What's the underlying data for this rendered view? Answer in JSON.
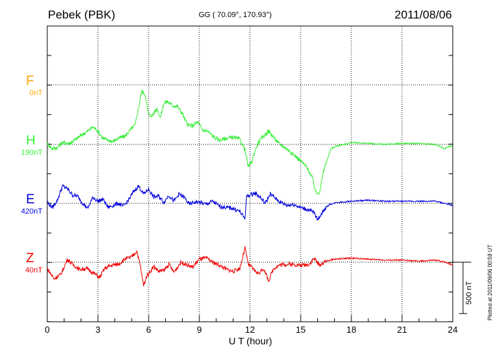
{
  "header": {
    "station": "Pebek (PBK)",
    "coords": "GG ( 70.09°, 170.93°)",
    "date": "2011/08/06"
  },
  "footer": {
    "plotted": "Plotted at 2011/09/06 00:59 UT"
  },
  "chart_data": {
    "type": "line",
    "xlabel": "U T (hour)",
    "xlim": [
      0,
      24
    ],
    "xticks": [
      0,
      3,
      6,
      9,
      12,
      15,
      18,
      21,
      24
    ],
    "grid": true,
    "scale_bar": {
      "label": "500 nT",
      "value": 500
    },
    "series": [
      {
        "name": "F",
        "baseline_label": "0nT",
        "color": "#ffa500",
        "points": []
      },
      {
        "name": "H",
        "baseline_label": "190nT",
        "color": "#33ee33",
        "points": [
          [
            0,
            10
          ],
          [
            0.3,
            -40
          ],
          [
            0.6,
            -30
          ],
          [
            0.9,
            20
          ],
          [
            1.3,
            10
          ],
          [
            1.7,
            50
          ],
          [
            2.0,
            90
          ],
          [
            2.4,
            130
          ],
          [
            2.7,
            170
          ],
          [
            3.0,
            130
          ],
          [
            3.3,
            60
          ],
          [
            3.6,
            40
          ],
          [
            3.9,
            30
          ],
          [
            4.2,
            60
          ],
          [
            4.6,
            80
          ],
          [
            4.9,
            140
          ],
          [
            5.2,
            190
          ],
          [
            5.5,
            440
          ],
          [
            5.6,
            520
          ],
          [
            5.8,
            480
          ],
          [
            6.0,
            290
          ],
          [
            6.2,
            280
          ],
          [
            6.5,
            350
          ],
          [
            6.7,
            260
          ],
          [
            6.9,
            400
          ],
          [
            7.1,
            420
          ],
          [
            7.4,
            380
          ],
          [
            7.7,
            370
          ],
          [
            8.0,
            300
          ],
          [
            8.3,
            190
          ],
          [
            8.6,
            180
          ],
          [
            8.9,
            220
          ],
          [
            9.2,
            140
          ],
          [
            9.5,
            130
          ],
          [
            9.8,
            80
          ],
          [
            10.2,
            40
          ],
          [
            10.6,
            60
          ],
          [
            11.0,
            70
          ],
          [
            11.4,
            50
          ],
          [
            11.7,
            -50
          ],
          [
            11.9,
            -220
          ],
          [
            12.1,
            -170
          ],
          [
            12.3,
            -60
          ],
          [
            12.5,
            20
          ],
          [
            12.8,
            80
          ],
          [
            13.1,
            130
          ],
          [
            13.4,
            70
          ],
          [
            13.7,
            10
          ],
          [
            14.0,
            -20
          ],
          [
            14.3,
            -60
          ],
          [
            14.6,
            -100
          ],
          [
            15.0,
            -160
          ],
          [
            15.4,
            -230
          ],
          [
            15.7,
            -330
          ],
          [
            15.9,
            -470
          ],
          [
            16.1,
            -470
          ],
          [
            16.4,
            -230
          ],
          [
            16.8,
            -40
          ],
          [
            17.2,
            -10
          ],
          [
            17.6,
            0
          ],
          [
            18.0,
            20
          ],
          [
            19.0,
            10
          ],
          [
            20.0,
            0
          ],
          [
            21.0,
            10
          ],
          [
            22.0,
            10
          ],
          [
            23.0,
            0
          ],
          [
            23.5,
            -40
          ],
          [
            23.8,
            -20
          ],
          [
            24.0,
            -10
          ]
        ]
      },
      {
        "name": "E",
        "baseline_label": "420nT",
        "color": "#0000dd",
        "points": [
          [
            0,
            10
          ],
          [
            0.3,
            -40
          ],
          [
            0.6,
            30
          ],
          [
            0.9,
            170
          ],
          [
            1.2,
            140
          ],
          [
            1.5,
            80
          ],
          [
            1.8,
            70
          ],
          [
            2.1,
            0
          ],
          [
            2.4,
            -50
          ],
          [
            2.7,
            60
          ],
          [
            3.0,
            20
          ],
          [
            3.3,
            40
          ],
          [
            3.6,
            -40
          ],
          [
            3.9,
            -20
          ],
          [
            4.2,
            0
          ],
          [
            4.5,
            -30
          ],
          [
            4.8,
            30
          ],
          [
            5.1,
            110
          ],
          [
            5.4,
            170
          ],
          [
            5.7,
            90
          ],
          [
            6.0,
            140
          ],
          [
            6.3,
            60
          ],
          [
            6.6,
            70
          ],
          [
            6.9,
            10
          ],
          [
            7.2,
            80
          ],
          [
            7.5,
            20
          ],
          [
            7.8,
            90
          ],
          [
            8.1,
            60
          ],
          [
            8.4,
            -10
          ],
          [
            8.7,
            10
          ],
          [
            9.0,
            10
          ],
          [
            9.4,
            -10
          ],
          [
            9.8,
            20
          ],
          [
            10.2,
            -30
          ],
          [
            10.6,
            -40
          ],
          [
            11.0,
            -50
          ],
          [
            11.4,
            -80
          ],
          [
            11.7,
            -150
          ],
          [
            11.8,
            70
          ],
          [
            12.0,
            80
          ],
          [
            12.3,
            100
          ],
          [
            12.6,
            60
          ],
          [
            12.9,
            0
          ],
          [
            13.2,
            90
          ],
          [
            13.5,
            50
          ],
          [
            13.8,
            10
          ],
          [
            14.2,
            -20
          ],
          [
            14.6,
            -10
          ],
          [
            15.0,
            -40
          ],
          [
            15.4,
            -60
          ],
          [
            15.8,
            -90
          ],
          [
            16.0,
            -160
          ],
          [
            16.3,
            -80
          ],
          [
            16.7,
            -10
          ],
          [
            17.2,
            10
          ],
          [
            18.0,
            20
          ],
          [
            19.0,
            30
          ],
          [
            20.0,
            20
          ],
          [
            21.0,
            20
          ],
          [
            22.0,
            20
          ],
          [
            23.0,
            20
          ],
          [
            24.0,
            -20
          ]
        ]
      },
      {
        "name": "Z",
        "baseline_label": "40nT",
        "color": "#ee0000",
        "points": [
          [
            0,
            -60
          ],
          [
            0.4,
            -160
          ],
          [
            0.8,
            -120
          ],
          [
            1.2,
            30
          ],
          [
            1.5,
            -20
          ],
          [
            1.9,
            -70
          ],
          [
            2.3,
            -60
          ],
          [
            2.7,
            -100
          ],
          [
            3.1,
            -150
          ],
          [
            3.4,
            -60
          ],
          [
            3.8,
            -30
          ],
          [
            4.2,
            -20
          ],
          [
            4.6,
            30
          ],
          [
            5.0,
            50
          ],
          [
            5.3,
            110
          ],
          [
            5.5,
            -30
          ],
          [
            5.7,
            -230
          ],
          [
            5.9,
            -130
          ],
          [
            6.1,
            -90
          ],
          [
            6.3,
            -40
          ],
          [
            6.6,
            -90
          ],
          [
            6.9,
            -80
          ],
          [
            7.2,
            -20
          ],
          [
            7.5,
            -100
          ],
          [
            7.9,
            0
          ],
          [
            8.2,
            -20
          ],
          [
            8.6,
            -50
          ],
          [
            9.0,
            30
          ],
          [
            9.4,
            40
          ],
          [
            9.8,
            0
          ],
          [
            10.2,
            -30
          ],
          [
            10.6,
            -70
          ],
          [
            11.0,
            -90
          ],
          [
            11.4,
            -60
          ],
          [
            11.7,
            140
          ],
          [
            11.9,
            -20
          ],
          [
            12.2,
            -70
          ],
          [
            12.5,
            -110
          ],
          [
            12.8,
            -60
          ],
          [
            13.1,
            -180
          ],
          [
            13.4,
            -60
          ],
          [
            13.7,
            -30
          ],
          [
            14.1,
            -20
          ],
          [
            14.5,
            -20
          ],
          [
            15.0,
            -30
          ],
          [
            15.5,
            -20
          ],
          [
            15.8,
            40
          ],
          [
            16.1,
            -30
          ],
          [
            16.5,
            10
          ],
          [
            17.0,
            30
          ],
          [
            18.0,
            40
          ],
          [
            19.0,
            30
          ],
          [
            20.0,
            20
          ],
          [
            21.0,
            20
          ],
          [
            22.0,
            10
          ],
          [
            23.0,
            20
          ],
          [
            23.6,
            0
          ],
          [
            24.0,
            -30
          ]
        ]
      }
    ]
  }
}
